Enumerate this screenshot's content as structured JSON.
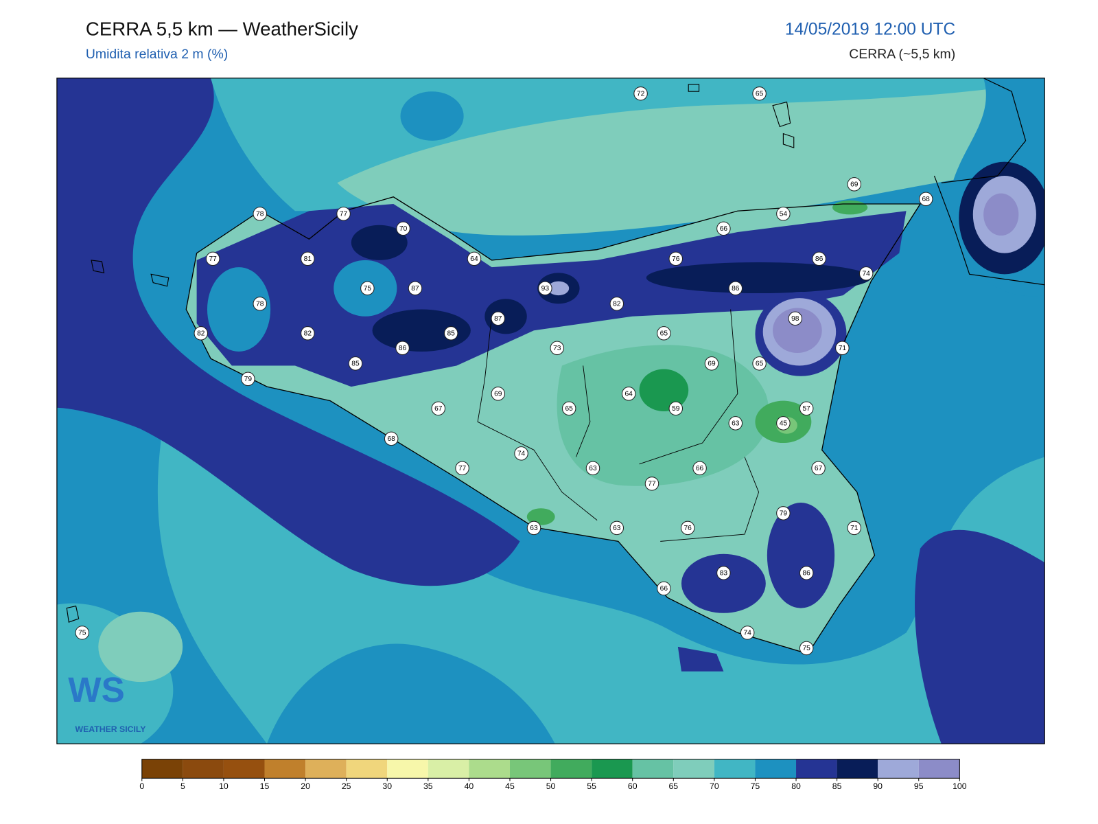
{
  "header": {
    "title": "CERRA 5,5 km — WeatherSicily",
    "subtitle": "Umidita relativa 2 m (%)",
    "datetime": "14/05/2019 12:00 UTC",
    "model": "CERRA (~5,5 km)"
  },
  "stations": [
    72,
    65,
    69,
    68,
    54,
    66,
    78,
    77,
    70,
    64,
    76,
    86,
    74,
    77,
    81,
    75,
    87,
    93,
    82,
    86,
    78,
    98,
    87,
    65,
    85,
    82,
    82,
    86,
    73,
    71,
    69,
    65,
    85,
    79,
    64,
    69,
    67,
    65,
    59,
    57,
    63,
    45,
    68,
    74,
    77,
    63,
    66,
    67,
    77,
    79,
    63,
    63,
    76,
    71,
    83,
    86,
    66,
    74,
    75,
    75
  ],
  "colorbar": {
    "ticks": [
      0,
      5,
      10,
      15,
      20,
      25,
      30,
      35,
      40,
      45,
      50,
      55,
      60,
      65,
      70,
      75,
      80,
      85,
      90,
      95,
      100
    ],
    "colors": [
      "#7a4206",
      "#8b4a0e",
      "#96500f",
      "#c0802c",
      "#deb05a",
      "#f0d67c",
      "#f7f7aa",
      "#d9efa6",
      "#acdc8c",
      "#78c679",
      "#41ab5d",
      "#1a9850",
      "#66c2a4",
      "#7fcdbb",
      "#41b6c4",
      "#1d91c0",
      "#253494",
      "#081d58",
      "#9ea9d9",
      "#8c8cc8"
    ]
  },
  "logo": {
    "mark": "WS",
    "name": "WEATHER SICILY"
  }
}
